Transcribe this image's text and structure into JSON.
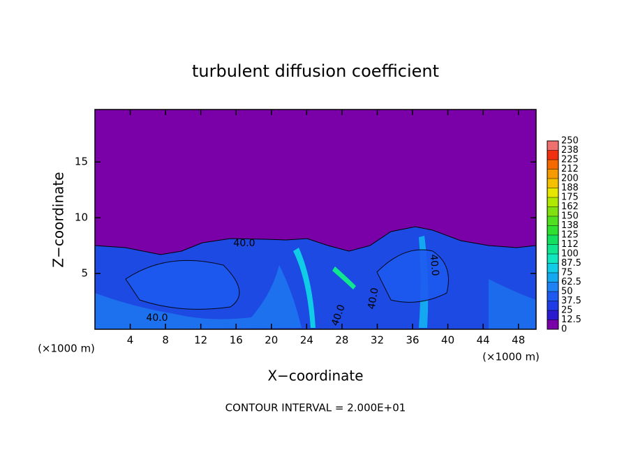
{
  "chart_data": {
    "type": "contour",
    "title": "turbulent diffusion coefficient",
    "x_label": "X−coordinate",
    "y_label": "Z−coordinate",
    "x_unit": "(×1000 m)",
    "y_unit": "(×1000 m)",
    "footer": "CONTOUR INTERVAL = 2.000E+01",
    "xlim": [
      0,
      50
    ],
    "xticks": [
      4,
      8,
      12,
      16,
      20,
      24,
      28,
      32,
      36,
      40,
      44,
      48
    ],
    "ylim": [
      0,
      19.7
    ],
    "yticks": [
      5,
      10,
      15
    ],
    "background_color": "#7a00a8",
    "contour_labels": [
      "40.0",
      "40.0",
      "40.0",
      "40.0",
      "40.0"
    ],
    "colorbar": {
      "ticks": [
        0,
        12.5,
        25,
        37.5,
        50,
        62.5,
        75,
        87.5,
        100,
        {
          "value": 112.5,
          "label": "112"
        },
        125,
        {
          "value": 137.5,
          "label": "138"
        },
        150,
        {
          "value": 162.5,
          "label": "162"
        },
        175,
        {
          "value": 187.5,
          "label": "188"
        },
        200,
        {
          "value": 212.5,
          "label": "212"
        },
        225,
        {
          "value": 237.5,
          "label": "238"
        },
        250
      ],
      "colors": [
        "#7a00a8",
        "#2a1ad0",
        "#1e3ce6",
        "#1e5af0",
        "#1e82f5",
        "#14a8f0",
        "#10cce6",
        "#10e6c0",
        "#10e690",
        "#14e060",
        "#30e030",
        "#50e020",
        "#80e010",
        "#b0e800",
        "#e6e600",
        "#f5c000",
        "#f59a00",
        "#f56a00",
        "#f03010",
        "#f07070"
      ]
    }
  }
}
